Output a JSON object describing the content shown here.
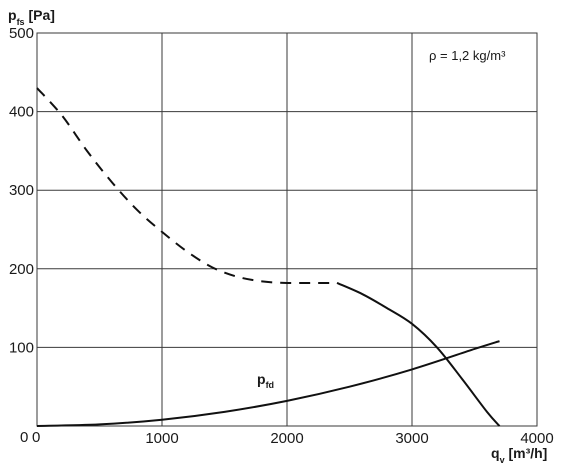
{
  "chart_data": {
    "type": "line",
    "title": "",
    "ylabel": {
      "main": "p",
      "sub": "fs",
      "unit": " [Pa]"
    },
    "xlabel": {
      "main": "q",
      "sub": "v",
      "unit": " [m³/h]"
    },
    "annotation": "ρ = 1,2 kg/m³",
    "origin_labels": {
      "x": "0",
      "y": "0"
    },
    "xlim": [
      0,
      4000
    ],
    "ylim": [
      0,
      500
    ],
    "x_ticks": [
      "1000",
      "2000",
      "3000",
      "4000"
    ],
    "y_ticks": [
      "100",
      "200",
      "300",
      "400",
      "500"
    ],
    "grid": true,
    "series": [
      {
        "label": "",
        "style": "dashed",
        "color": "#111111",
        "points": [
          [
            0,
            430
          ],
          [
            200,
            395
          ],
          [
            400,
            350
          ],
          [
            600,
            310
          ],
          [
            800,
            275
          ],
          [
            1000,
            247
          ],
          [
            1200,
            222
          ],
          [
            1400,
            202
          ],
          [
            1600,
            190
          ],
          [
            1800,
            184
          ],
          [
            2000,
            182
          ],
          [
            2200,
            182
          ],
          [
            2400,
            182
          ]
        ]
      },
      {
        "label": "",
        "style": "solid",
        "color": "#111111",
        "points": [
          [
            2400,
            182
          ],
          [
            2600,
            168
          ],
          [
            2800,
            150
          ],
          [
            3000,
            130
          ],
          [
            3200,
            100
          ],
          [
            3400,
            60
          ],
          [
            3600,
            18
          ],
          [
            3700,
            0
          ]
        ]
      },
      {
        "label": {
          "main": "p",
          "sub": "fd"
        },
        "label_at": [
          2000,
          38
        ],
        "style": "solid",
        "color": "#111111",
        "points": [
          [
            0,
            0
          ],
          [
            500,
            2
          ],
          [
            1000,
            8
          ],
          [
            1500,
            18
          ],
          [
            2000,
            32
          ],
          [
            2500,
            50
          ],
          [
            3000,
            72
          ],
          [
            3500,
            98
          ],
          [
            3700,
            108
          ]
        ]
      }
    ]
  }
}
